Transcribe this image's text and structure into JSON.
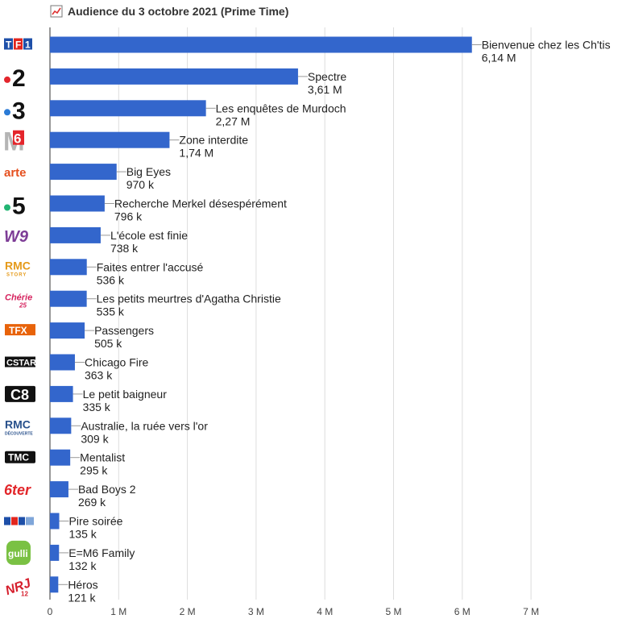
{
  "chart_data": {
    "type": "bar",
    "orientation": "horizontal",
    "title": "Audience du 3 octobre 2021 (Prime Time)",
    "title_icon": "line-chart-icon",
    "xlim": [
      0,
      8000000
    ],
    "x_ticks": [
      0,
      1000000,
      2000000,
      3000000,
      4000000,
      5000000,
      6000000,
      7000000
    ],
    "x_tick_labels": [
      "0",
      "1 M",
      "2 M",
      "3 M",
      "4 M",
      "5 M",
      "6 M",
      "7 M"
    ],
    "grid": true,
    "bar_color": "#3366cc",
    "categories": [
      {
        "channel": "TF1",
        "logo": "tf1-logo",
        "program": "Bienvenue chez les Ch'tis",
        "value": 6140000,
        "value_label": "6,14 M"
      },
      {
        "channel": "France 2",
        "logo": "france2-logo",
        "program": "Spectre",
        "value": 3610000,
        "value_label": "3,61 M"
      },
      {
        "channel": "France 3",
        "logo": "france3-logo",
        "program": "Les enquêtes de Murdoch",
        "value": 2270000,
        "value_label": "2,27 M"
      },
      {
        "channel": "M6",
        "logo": "m6-logo",
        "program": "Zone interdite",
        "value": 1740000,
        "value_label": "1,74 M"
      },
      {
        "channel": "Arte",
        "logo": "arte-logo",
        "program": "Big Eyes",
        "value": 970000,
        "value_label": "970 k"
      },
      {
        "channel": "France 5",
        "logo": "france5-logo",
        "program": "Recherche Merkel désespérément",
        "value": 796000,
        "value_label": "796 k"
      },
      {
        "channel": "W9",
        "logo": "w9-logo",
        "program": "L'école est finie",
        "value": 738000,
        "value_label": "738 k"
      },
      {
        "channel": "RMC Story",
        "logo": "rmc-story-logo",
        "program": "Faites entrer l'accusé",
        "value": 536000,
        "value_label": "536 k"
      },
      {
        "channel": "Chérie 25",
        "logo": "cherie25-logo",
        "program": "Les petits meurtres d'Agatha Christie",
        "value": 535000,
        "value_label": "535 k"
      },
      {
        "channel": "TFX",
        "logo": "tfx-logo",
        "program": "Passengers",
        "value": 505000,
        "value_label": "505 k"
      },
      {
        "channel": "CStar",
        "logo": "cstar-logo",
        "program": "Chicago Fire",
        "value": 363000,
        "value_label": "363 k"
      },
      {
        "channel": "C8",
        "logo": "c8-logo",
        "program": "Le petit baigneur",
        "value": 335000,
        "value_label": "335 k"
      },
      {
        "channel": "RMC Découverte",
        "logo": "rmc-decouverte-logo",
        "program": "Australie, la ruée vers l'or",
        "value": 309000,
        "value_label": "309 k"
      },
      {
        "channel": "TMC",
        "logo": "tmc-logo",
        "program": "Mentalist",
        "value": 295000,
        "value_label": "295 k"
      },
      {
        "channel": "6ter",
        "logo": "6ter-logo",
        "program": "Bad Boys 2",
        "value": 269000,
        "value_label": "269 k"
      },
      {
        "channel": "TF1 Séries Films",
        "logo": "tf1-series-films-logo",
        "program": "Pire soirée",
        "value": 135000,
        "value_label": "135 k"
      },
      {
        "channel": "Gulli",
        "logo": "gulli-logo",
        "program": "E=M6 Family",
        "value": 132000,
        "value_label": "132 k"
      },
      {
        "channel": "NRJ 12",
        "logo": "nrj12-logo",
        "program": "Héros",
        "value": 121000,
        "value_label": "121 k"
      }
    ]
  }
}
